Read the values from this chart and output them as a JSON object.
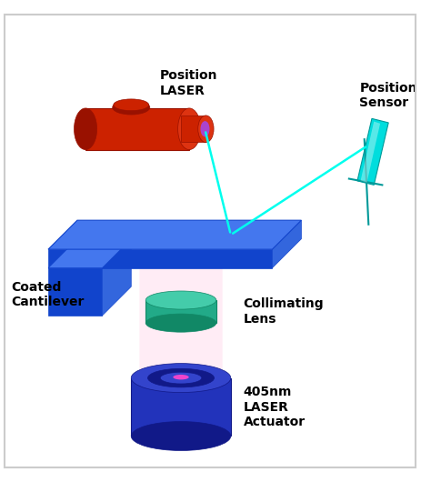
{
  "bg_color": "#ffffff",
  "labels": {
    "position_laser": "Position\nLASER",
    "position_sensor": "Position\nSensor",
    "coated_cantilever": "Coated\nCantilever",
    "collimating_lens": "Collimating\nLens",
    "laser_actuator": "405nm\nLASER\nActuator"
  },
  "colors": {
    "border_color": "#cccccc",
    "laser_body": "#cc2200",
    "laser_body_dark": "#991100",
    "laser_front": "#dd3311",
    "laser_tip_purple": "#aa44cc",
    "cantilever_blue": "#1144cc",
    "cantilever_light": "#3366dd",
    "cantilever_top": "#4477ee",
    "lens_green": "#22aa88",
    "lens_green_top": "#44ccaa",
    "lens_dark": "#118866",
    "actuator_blue": "#2233bb",
    "actuator_dark": "#111988",
    "actuator_top": "#3344cc",
    "actuator_dot": "#ee44cc",
    "sensor_cyan": "#00dddd",
    "sensor_edge": "#009999",
    "beam_cyan": "#00ffee",
    "pink_glow2": "#ffddee",
    "label_color": "#000000"
  },
  "figsize": [
    4.74,
    5.3
  ],
  "dpi": 100
}
